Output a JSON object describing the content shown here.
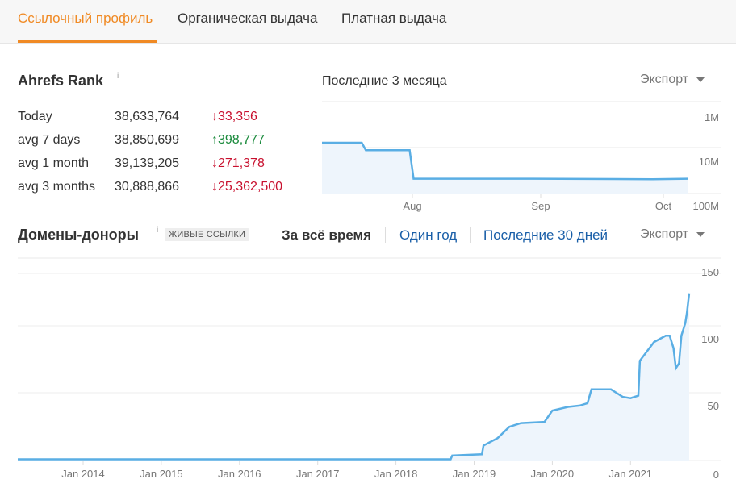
{
  "tabs": [
    {
      "label": "Ссылочный профиль",
      "active": true
    },
    {
      "label": "Органическая выдача",
      "active": false
    },
    {
      "label": "Платная выдача",
      "active": false
    }
  ],
  "ahrefs_rank": {
    "title": "Ahrefs Rank",
    "info_icon": "i",
    "rows": [
      {
        "label": "Today",
        "value": "38,633,764",
        "change": "33,356",
        "direction": "down"
      },
      {
        "label": "avg 7 days",
        "value": "38,850,699",
        "change": "398,777",
        "direction": "up"
      },
      {
        "label": "avg 1 month",
        "value": "39,139,205",
        "change": "271,378",
        "direction": "down"
      },
      {
        "label": "avg 3 months",
        "value": "30,888,866",
        "change": "25,362,500",
        "direction": "down"
      }
    ],
    "period_label": "Последние 3 месяца",
    "export_label": "Экспорт"
  },
  "donors": {
    "title": "Домены-доноры",
    "info_icon": "i",
    "badge": "ЖИВЫЕ ССЫЛКИ",
    "ranges": [
      {
        "label": "За всё время",
        "active": true
      },
      {
        "label": "Один год",
        "active": false
      },
      {
        "label": "Последние 30 дней",
        "active": false
      }
    ],
    "export_label": "Экспорт"
  },
  "chart_data": [
    {
      "type": "area",
      "y_scale": "log-inverted",
      "yticks": [
        "1M",
        "10M",
        "100M"
      ],
      "xticks": [
        "Aug",
        "Sep",
        "Oct"
      ],
      "color": "#5aaee4",
      "x": [
        "Jul 10",
        "Jul 20",
        "Jul 21",
        "Aug 1",
        "Aug 2",
        "Sep 1",
        "Oct 1",
        "Oct 10"
      ],
      "values": [
        3800000,
        3800000,
        5500000,
        5500000,
        23000000,
        23000000,
        23500000,
        23000000
      ]
    },
    {
      "type": "area",
      "ylim": [
        0,
        150
      ],
      "yticks": [
        "0",
        "50",
        "100",
        "150"
      ],
      "xticks": [
        "Jan 2014",
        "Jan 2015",
        "Jan 2016",
        "Jan 2017",
        "Jan 2018",
        "Jan 2019",
        "Jan 2020",
        "Jan 2021"
      ],
      "color": "#5aaee4",
      "x": [
        2013.6,
        2018.7,
        2018.72,
        2019.1,
        2019.12,
        2019.3,
        2019.45,
        2019.6,
        2019.9,
        2020.0,
        2020.2,
        2020.35,
        2020.45,
        2020.5,
        2020.75,
        2020.85,
        2020.9,
        2021.0,
        2021.1,
        2021.12,
        2021.3,
        2021.45,
        2021.5,
        2021.55,
        2021.58,
        2021.62,
        2021.65,
        2021.7,
        2021.72,
        2021.75
      ],
      "values": [
        1,
        1,
        4,
        5,
        12,
        18,
        27,
        30,
        31,
        40,
        43,
        44,
        46,
        57,
        57,
        53,
        51,
        50,
        52,
        80,
        95,
        100,
        100,
        90,
        74,
        78,
        100,
        110,
        118,
        134
      ]
    }
  ]
}
